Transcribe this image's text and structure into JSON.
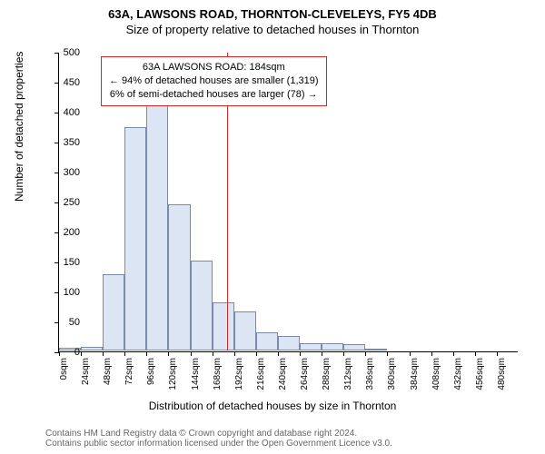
{
  "title_line1": "63A, LAWSONS ROAD, THORNTON-CLEVELEYS, FY5 4DB",
  "title_line2": "Size of property relative to detached houses in Thornton",
  "ylabel": "Number of detached properties",
  "xlabel": "Distribution of detached houses by size in Thornton",
  "footer": "Contains HM Land Registry data © Crown copyright and database right 2024.\nContains public sector information licensed under the Open Government Licence v3.0.",
  "histogram": {
    "type": "histogram",
    "ylim": [
      0,
      500
    ],
    "ytick_step": 50,
    "xlim_bins": 21,
    "bin_width_sqm": 24,
    "bar_fill": "#dbe5f4",
    "bar_stroke": "#7a8aa8",
    "background": "#ffffff",
    "bins": [
      {
        "label": "0sqm",
        "value": 4
      },
      {
        "label": "24sqm",
        "value": 6
      },
      {
        "label": "48sqm",
        "value": 128
      },
      {
        "label": "72sqm",
        "value": 374
      },
      {
        "label": "96sqm",
        "value": 412
      },
      {
        "label": "120sqm",
        "value": 244
      },
      {
        "label": "144sqm",
        "value": 150
      },
      {
        "label": "168sqm",
        "value": 80
      },
      {
        "label": "192sqm",
        "value": 65
      },
      {
        "label": "216sqm",
        "value": 30
      },
      {
        "label": "240sqm",
        "value": 25
      },
      {
        "label": "264sqm",
        "value": 12
      },
      {
        "label": "288sqm",
        "value": 12
      },
      {
        "label": "312sqm",
        "value": 10
      },
      {
        "label": "336sqm",
        "value": 2
      },
      {
        "label": "360sqm",
        "value": 0
      },
      {
        "label": "384sqm",
        "value": 0
      },
      {
        "label": "408sqm",
        "value": 0
      },
      {
        "label": "432sqm",
        "value": 0
      },
      {
        "label": "456sqm",
        "value": 0
      },
      {
        "label": "480sqm",
        "value": 0
      }
    ]
  },
  "marker": {
    "sqm": 184,
    "color": "#d62728",
    "annotation_border": "#d62728",
    "lines": [
      "63A LAWSONS ROAD: 184sqm",
      "← 94% of detached houses are smaller (1,319)",
      "6% of semi-detached houses are larger (78) →"
    ]
  },
  "fonts": {
    "title_size": 13,
    "axis_label_size": 12,
    "tick_size": 11,
    "annotation_size": 11,
    "footer_size": 10
  }
}
